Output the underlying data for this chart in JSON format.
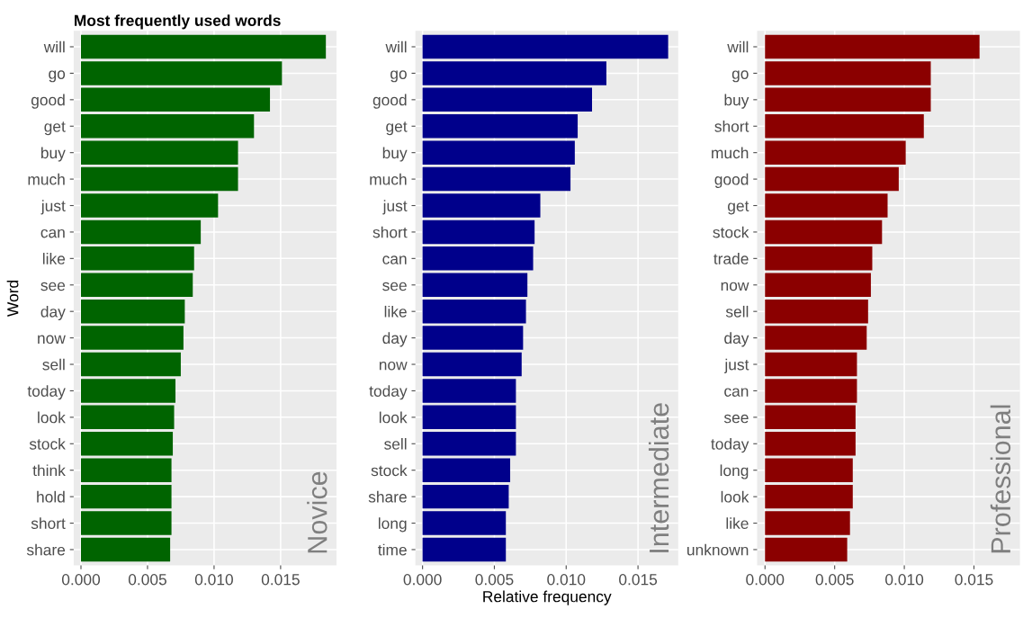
{
  "chart_data": [
    {
      "type": "bar",
      "orientation": "horizontal",
      "title": "Most frequently used words",
      "ylabel": "Word",
      "annotations": [
        "Novice"
      ],
      "grid": true,
      "categories": [
        "will",
        "go",
        "good",
        "get",
        "buy",
        "much",
        "just",
        "can",
        "like",
        "see",
        "day",
        "now",
        "sell",
        "today",
        "look",
        "stock",
        "think",
        "hold",
        "short",
        "share"
      ],
      "series": [
        {
          "color": "#006400",
          "values": [
            0.0184,
            0.0151,
            0.0142,
            0.013,
            0.0118,
            0.0118,
            0.0103,
            0.009,
            0.0085,
            0.0084,
            0.0078,
            0.0077,
            0.0075,
            0.0071,
            0.007,
            0.0069,
            0.0068,
            0.0068,
            0.0068,
            0.0067
          ]
        }
      ],
      "xlim": [
        -0.00055,
        0.0192
      ],
      "xticks": [
        {
          "value": 0,
          "label": "0.000"
        },
        {
          "value": 0.005,
          "label": "0.005"
        },
        {
          "value": 0.01,
          "label": "0.010"
        },
        {
          "value": 0.015,
          "label": "0.015"
        }
      ]
    },
    {
      "type": "bar",
      "orientation": "horizontal",
      "xlabel": "Relative frequency",
      "annotations": [
        "Intermediate"
      ],
      "grid": true,
      "categories": [
        "will",
        "go",
        "good",
        "get",
        "buy",
        "much",
        "just",
        "short",
        "can",
        "see",
        "like",
        "day",
        "now",
        "today",
        "look",
        "sell",
        "stock",
        "share",
        "long",
        "time"
      ],
      "series": [
        {
          "color": "#00008b",
          "values": [
            0.0171,
            0.0128,
            0.0118,
            0.0108,
            0.0106,
            0.0103,
            0.0082,
            0.0078,
            0.0077,
            0.0073,
            0.0072,
            0.007,
            0.0069,
            0.0065,
            0.0065,
            0.0065,
            0.0061,
            0.006,
            0.0058,
            0.0058
          ]
        }
      ],
      "xlim": [
        -0.0005,
        0.0178
      ],
      "xticks": [
        {
          "value": 0,
          "label": "0.000"
        },
        {
          "value": 0.005,
          "label": "0.005"
        },
        {
          "value": 0.01,
          "label": "0.010"
        },
        {
          "value": 0.015,
          "label": "0.015"
        }
      ]
    },
    {
      "type": "bar",
      "orientation": "horizontal",
      "annotations": [
        "Professional"
      ],
      "grid": true,
      "categories": [
        "will",
        "go",
        "buy",
        "short",
        "much",
        "good",
        "get",
        "stock",
        "trade",
        "now",
        "sell",
        "day",
        "just",
        "can",
        "see",
        "today",
        "long",
        "look",
        "like",
        "unknown"
      ],
      "series": [
        {
          "color": "#8b0000",
          "values": [
            0.0154,
            0.0119,
            0.0119,
            0.0114,
            0.0101,
            0.0096,
            0.0088,
            0.0084,
            0.0077,
            0.0076,
            0.0074,
            0.0073,
            0.0066,
            0.0066,
            0.0065,
            0.0065,
            0.0063,
            0.0063,
            0.0061,
            0.0059
          ]
        }
      ],
      "xlim": [
        -0.00057,
        0.0183
      ],
      "xticks": [
        {
          "value": 0,
          "label": "0.000"
        },
        {
          "value": 0.005,
          "label": "0.005"
        },
        {
          "value": 0.01,
          "label": "0.010"
        },
        {
          "value": 0.015,
          "label": "0.015"
        }
      ]
    }
  ]
}
